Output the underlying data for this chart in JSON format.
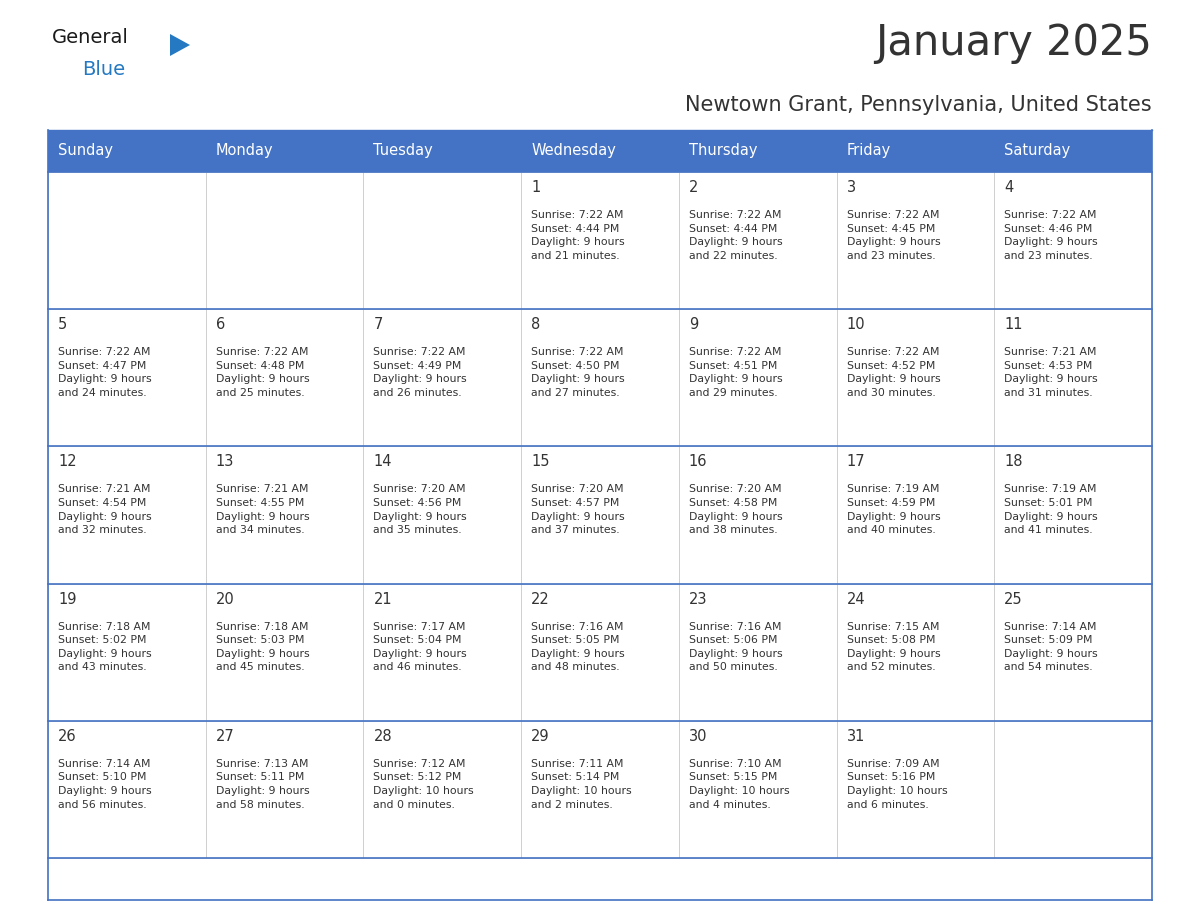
{
  "title": "January 2025",
  "subtitle": "Newtown Grant, Pennsylvania, United States",
  "days_of_week": [
    "Sunday",
    "Monday",
    "Tuesday",
    "Wednesday",
    "Thursday",
    "Friday",
    "Saturday"
  ],
  "header_bg": "#4472C4",
  "header_text": "#FFFFFF",
  "cell_bg": "#FFFFFF",
  "divider_color": "#4472C4",
  "text_color": "#333333",
  "calendar": [
    [
      {
        "day": "",
        "text": ""
      },
      {
        "day": "",
        "text": ""
      },
      {
        "day": "",
        "text": ""
      },
      {
        "day": "1",
        "text": "Sunrise: 7:22 AM\nSunset: 4:44 PM\nDaylight: 9 hours\nand 21 minutes."
      },
      {
        "day": "2",
        "text": "Sunrise: 7:22 AM\nSunset: 4:44 PM\nDaylight: 9 hours\nand 22 minutes."
      },
      {
        "day": "3",
        "text": "Sunrise: 7:22 AM\nSunset: 4:45 PM\nDaylight: 9 hours\nand 23 minutes."
      },
      {
        "day": "4",
        "text": "Sunrise: 7:22 AM\nSunset: 4:46 PM\nDaylight: 9 hours\nand 23 minutes."
      }
    ],
    [
      {
        "day": "5",
        "text": "Sunrise: 7:22 AM\nSunset: 4:47 PM\nDaylight: 9 hours\nand 24 minutes."
      },
      {
        "day": "6",
        "text": "Sunrise: 7:22 AM\nSunset: 4:48 PM\nDaylight: 9 hours\nand 25 minutes."
      },
      {
        "day": "7",
        "text": "Sunrise: 7:22 AM\nSunset: 4:49 PM\nDaylight: 9 hours\nand 26 minutes."
      },
      {
        "day": "8",
        "text": "Sunrise: 7:22 AM\nSunset: 4:50 PM\nDaylight: 9 hours\nand 27 minutes."
      },
      {
        "day": "9",
        "text": "Sunrise: 7:22 AM\nSunset: 4:51 PM\nDaylight: 9 hours\nand 29 minutes."
      },
      {
        "day": "10",
        "text": "Sunrise: 7:22 AM\nSunset: 4:52 PM\nDaylight: 9 hours\nand 30 minutes."
      },
      {
        "day": "11",
        "text": "Sunrise: 7:21 AM\nSunset: 4:53 PM\nDaylight: 9 hours\nand 31 minutes."
      }
    ],
    [
      {
        "day": "12",
        "text": "Sunrise: 7:21 AM\nSunset: 4:54 PM\nDaylight: 9 hours\nand 32 minutes."
      },
      {
        "day": "13",
        "text": "Sunrise: 7:21 AM\nSunset: 4:55 PM\nDaylight: 9 hours\nand 34 minutes."
      },
      {
        "day": "14",
        "text": "Sunrise: 7:20 AM\nSunset: 4:56 PM\nDaylight: 9 hours\nand 35 minutes."
      },
      {
        "day": "15",
        "text": "Sunrise: 7:20 AM\nSunset: 4:57 PM\nDaylight: 9 hours\nand 37 minutes."
      },
      {
        "day": "16",
        "text": "Sunrise: 7:20 AM\nSunset: 4:58 PM\nDaylight: 9 hours\nand 38 minutes."
      },
      {
        "day": "17",
        "text": "Sunrise: 7:19 AM\nSunset: 4:59 PM\nDaylight: 9 hours\nand 40 minutes."
      },
      {
        "day": "18",
        "text": "Sunrise: 7:19 AM\nSunset: 5:01 PM\nDaylight: 9 hours\nand 41 minutes."
      }
    ],
    [
      {
        "day": "19",
        "text": "Sunrise: 7:18 AM\nSunset: 5:02 PM\nDaylight: 9 hours\nand 43 minutes."
      },
      {
        "day": "20",
        "text": "Sunrise: 7:18 AM\nSunset: 5:03 PM\nDaylight: 9 hours\nand 45 minutes."
      },
      {
        "day": "21",
        "text": "Sunrise: 7:17 AM\nSunset: 5:04 PM\nDaylight: 9 hours\nand 46 minutes."
      },
      {
        "day": "22",
        "text": "Sunrise: 7:16 AM\nSunset: 5:05 PM\nDaylight: 9 hours\nand 48 minutes."
      },
      {
        "day": "23",
        "text": "Sunrise: 7:16 AM\nSunset: 5:06 PM\nDaylight: 9 hours\nand 50 minutes."
      },
      {
        "day": "24",
        "text": "Sunrise: 7:15 AM\nSunset: 5:08 PM\nDaylight: 9 hours\nand 52 minutes."
      },
      {
        "day": "25",
        "text": "Sunrise: 7:14 AM\nSunset: 5:09 PM\nDaylight: 9 hours\nand 54 minutes."
      }
    ],
    [
      {
        "day": "26",
        "text": "Sunrise: 7:14 AM\nSunset: 5:10 PM\nDaylight: 9 hours\nand 56 minutes."
      },
      {
        "day": "27",
        "text": "Sunrise: 7:13 AM\nSunset: 5:11 PM\nDaylight: 9 hours\nand 58 minutes."
      },
      {
        "day": "28",
        "text": "Sunrise: 7:12 AM\nSunset: 5:12 PM\nDaylight: 10 hours\nand 0 minutes."
      },
      {
        "day": "29",
        "text": "Sunrise: 7:11 AM\nSunset: 5:14 PM\nDaylight: 10 hours\nand 2 minutes."
      },
      {
        "day": "30",
        "text": "Sunrise: 7:10 AM\nSunset: 5:15 PM\nDaylight: 10 hours\nand 4 minutes."
      },
      {
        "day": "31",
        "text": "Sunrise: 7:09 AM\nSunset: 5:16 PM\nDaylight: 10 hours\nand 6 minutes."
      },
      {
        "day": "",
        "text": ""
      }
    ]
  ],
  "logo_general_color": "#1a1a1a",
  "logo_blue_color": "#2479C2",
  "logo_triangle_color": "#2479C2",
  "fig_width": 11.88,
  "fig_height": 9.18,
  "dpi": 100
}
